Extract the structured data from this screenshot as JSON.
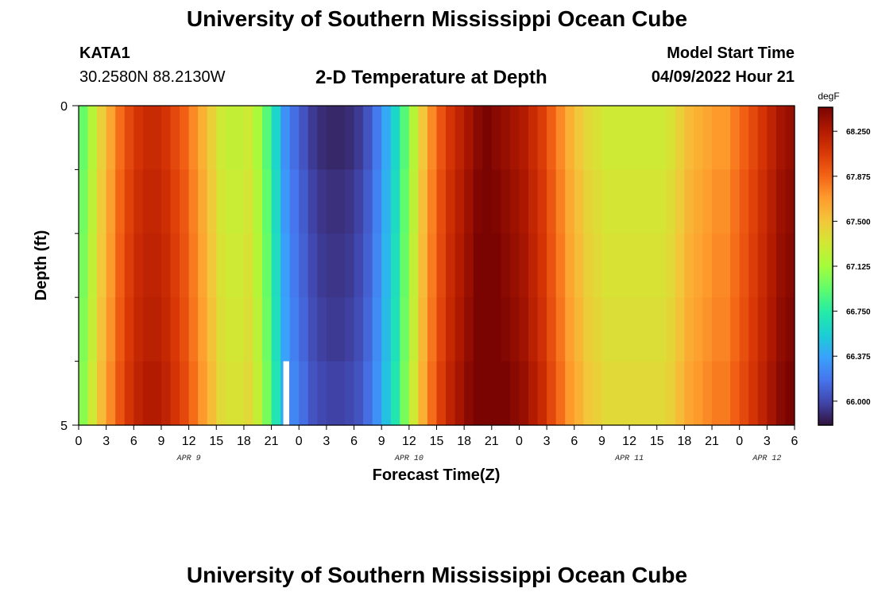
{
  "page": {
    "title": "University of Southern Mississippi Ocean Cube",
    "footer_title": "University of Southern Mississippi Ocean Cube"
  },
  "station": {
    "id": "KATA1",
    "coords": "30.2580N  88.2130W"
  },
  "model_start": {
    "label": "Model Start Time",
    "value": "04/09/2022 Hour 21"
  },
  "chart_data": {
    "type": "heatmap",
    "title": "2-D Temperature at Depth",
    "xlabel": "Forecast Time(Z)",
    "ylabel": "Depth (ft)",
    "y_range": [
      0,
      5
    ],
    "y_tick_labels": [
      "0",
      "5"
    ],
    "y_minor_ticks": [
      1,
      2,
      3,
      4
    ],
    "x_range_hours": [
      0,
      78
    ],
    "x_tick_hours": [
      0,
      3,
      6,
      9,
      12,
      15,
      18,
      21,
      24,
      27,
      30,
      33,
      36,
      39,
      42,
      45,
      48,
      51,
      54,
      57,
      60,
      63,
      66,
      69,
      72,
      75,
      78
    ],
    "x_tick_labels": [
      "0",
      "3",
      "6",
      "9",
      "12",
      "15",
      "18",
      "21",
      "0",
      "3",
      "6",
      "9",
      "12",
      "15",
      "18",
      "21",
      "0",
      "3",
      "6",
      "9",
      "12",
      "15",
      "18",
      "21",
      "0",
      "3",
      "6"
    ],
    "date_labels": [
      {
        "text": "APR 9",
        "hour": 12
      },
      {
        "text": "APR 10",
        "hour": 36
      },
      {
        "text": "APR 11",
        "hour": 60
      },
      {
        "text": "APR 12",
        "hour": 75
      }
    ],
    "colorbar": {
      "unit": "degF",
      "min": 65.8,
      "max": 68.45,
      "tick_values": [
        66.0,
        66.375,
        66.75,
        67.125,
        67.5,
        67.875,
        68.25
      ],
      "tick_labels": [
        "66.000",
        "66.375",
        "66.750",
        "67.125",
        "67.500",
        "67.875",
        "68.250"
      ],
      "colormap": [
        "#30123b",
        "#4145ab",
        "#4675ed",
        "#39a2fc",
        "#1bcfd4",
        "#24eca6",
        "#61fc6c",
        "#a4fc3b",
        "#d1e834",
        "#f3c63a",
        "#fe9b2d",
        "#f36315",
        "#d93806",
        "#b11901",
        "#7a0402"
      ]
    },
    "hours": [
      0,
      1,
      2,
      3,
      4,
      5,
      6,
      7,
      8,
      9,
      10,
      11,
      12,
      13,
      14,
      15,
      16,
      17,
      18,
      19,
      20,
      21,
      22,
      23,
      24,
      25,
      26,
      27,
      28,
      29,
      30,
      31,
      32,
      33,
      34,
      35,
      36,
      37,
      38,
      39,
      40,
      41,
      42,
      43,
      44,
      45,
      46,
      47,
      48,
      49,
      50,
      51,
      52,
      53,
      54,
      55,
      56,
      57,
      58,
      59,
      60,
      61,
      62,
      63,
      64,
      65,
      66,
      67,
      68,
      69,
      70,
      71,
      72,
      73,
      74,
      75,
      76,
      77
    ],
    "surface_temperature_degF": [
      66.95,
      67.2,
      67.45,
      67.65,
      67.85,
      68.0,
      68.1,
      68.15,
      68.15,
      68.1,
      68.0,
      67.9,
      67.75,
      67.6,
      67.45,
      67.3,
      67.25,
      67.25,
      67.3,
      67.15,
      66.9,
      66.6,
      66.3,
      66.15,
      66.05,
      65.95,
      65.9,
      65.88,
      65.88,
      65.9,
      65.95,
      66.05,
      66.2,
      66.4,
      66.6,
      66.9,
      67.2,
      67.5,
      67.75,
      67.95,
      68.1,
      68.2,
      68.3,
      68.4,
      68.45,
      68.4,
      68.35,
      68.3,
      68.25,
      68.15,
      68.05,
      67.9,
      67.75,
      67.6,
      67.5,
      67.4,
      67.35,
      67.3,
      67.3,
      67.3,
      67.3,
      67.3,
      67.3,
      67.3,
      67.35,
      67.45,
      67.55,
      67.6,
      67.65,
      67.7,
      67.7,
      67.8,
      67.9,
      68.0,
      68.1,
      68.2,
      68.3,
      68.35
    ],
    "depth_rows": 5,
    "row_offsets_degF": [
      0.0,
      0.03,
      0.05,
      0.07,
      0.1
    ],
    "missing_cells": [
      {
        "hour": 22,
        "depth_row": 4
      }
    ]
  }
}
